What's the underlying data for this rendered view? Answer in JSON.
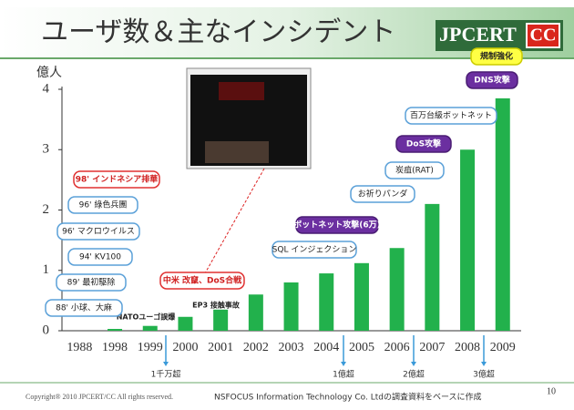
{
  "chart_data": {
    "type": "bar",
    "title": "ユーザ数＆主なインシデント",
    "y_label": "億人",
    "categories": [
      "1988",
      "1998",
      "1999",
      "2000",
      "2001",
      "2002",
      "2003",
      "2004",
      "2005",
      "2006",
      "2007",
      "2008",
      "2009"
    ],
    "values": [
      0,
      0.03,
      0.08,
      0.23,
      0.35,
      0.6,
      0.8,
      0.95,
      1.12,
      1.37,
      2.1,
      3.0,
      3.85
    ],
    "color": "#22b14c",
    "ylim": [
      0,
      4
    ],
    "yticks": [
      0,
      1,
      2,
      3,
      4
    ],
    "grid": false,
    "annotations": [
      "規制強化",
      "DNS攻撃",
      "百万台級ボットネット",
      "DoS攻撃",
      "炭疽(RAT)",
      "お祈りパンダ",
      "ボットネット攻撃(6万)",
      "SQL インジェクション",
      "中米 改竄、DoS合戦",
      "EP3 接触事故",
      "NATOユーゴ誤爆",
      "98' インドネシア排華",
      "96' 綠色兵團",
      "96' マクロウイルス",
      "94' KV100",
      "89' 最初駆除",
      "88' 小球、大麻"
    ],
    "milestones": [
      "1千万超",
      "1億超",
      "2億超",
      "3億超"
    ]
  },
  "logo": {
    "name": "JPCERT",
    "badge": "CC"
  },
  "footer": {
    "copyright": "Copyright® 2010 JPCERT/CC All rights reserved.",
    "source": "NSFOCUS Information Technology Co. Ltdの調査資料をベースに作成",
    "page": "10"
  }
}
